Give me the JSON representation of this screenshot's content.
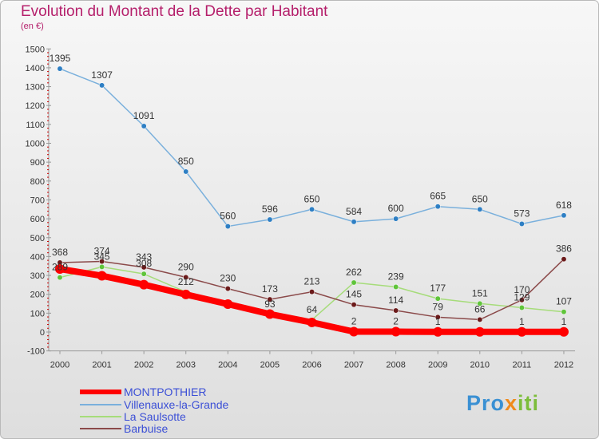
{
  "title": "Evolution du Montant de la Dette par Habitant",
  "subtitle": "(en €)",
  "logo": {
    "part1": "Pro",
    "part2": "x",
    "part3": "iti"
  },
  "colors": {
    "title": "#b51f6b",
    "legend_text": "#3b4fd6",
    "axis": "#999999",
    "tick_marks": "#cc0000"
  },
  "chart_data": {
    "type": "line",
    "title": "Evolution du Montant de la Dette par Habitant",
    "ylabel": "(en €)",
    "x": [
      "2000",
      "2001",
      "2002",
      "2003",
      "2004",
      "2005",
      "2006",
      "2007",
      "2008",
      "2009",
      "2010",
      "2011",
      "2012"
    ],
    "ylim": [
      -100,
      1500
    ],
    "yticks": [
      -100,
      0,
      100,
      200,
      300,
      400,
      500,
      600,
      700,
      800,
      900,
      1000,
      1100,
      1200,
      1300,
      1400,
      1500
    ],
    "grid": false,
    "legend_position": "bottom-left",
    "series": [
      {
        "name": "MONTPOTHIER",
        "color": "#ff0000",
        "marker": "#ff0000",
        "width": 8,
        "values": [
          334,
          298,
          251,
          199,
          148,
          95,
          51,
          2,
          2,
          1,
          1,
          1,
          1
        ],
        "labels": [
          "334",
          "298",
          "251",
          "199",
          "148",
          "95",
          "51",
          "2",
          "2",
          "1",
          "1",
          "1",
          "1"
        ],
        "show_labels": [
          false,
          false,
          false,
          false,
          false,
          false,
          false,
          true,
          true,
          true,
          false,
          true,
          true
        ]
      },
      {
        "name": "Villenauxe-la-Grande",
        "color": "#7ab0dc",
        "marker": "#2e7fc4",
        "width": 1.5,
        "values": [
          1395,
          1307,
          1091,
          850,
          560,
          596,
          650,
          584,
          600,
          665,
          650,
          573,
          618
        ],
        "labels": [
          "1395",
          "1307",
          "1091",
          "850",
          "560",
          "596",
          "650",
          "584",
          "600",
          "665",
          "650",
          "573",
          "618"
        ],
        "show_labels": [
          true,
          true,
          true,
          true,
          true,
          true,
          true,
          true,
          true,
          true,
          true,
          true,
          true
        ]
      },
      {
        "name": "La Saulsotte",
        "color": "#a6dc7a",
        "marker": "#5fc43a",
        "width": 1.5,
        "values": [
          289,
          345,
          308,
          212,
          153,
          93,
          64,
          262,
          239,
          177,
          151,
          129,
          107
        ],
        "labels": [
          "289",
          "345",
          "308",
          "212",
          "153",
          "93",
          "64",
          "262",
          "239",
          "177",
          "151",
          "129",
          "107"
        ],
        "show_labels": [
          true,
          true,
          true,
          true,
          false,
          true,
          true,
          true,
          true,
          true,
          true,
          true,
          true
        ]
      },
      {
        "name": "Barbuise",
        "color": "#8b4a4a",
        "marker": "#6b1a1a",
        "width": 1.5,
        "values": [
          368,
          374,
          343,
          290,
          230,
          173,
          213,
          145,
          114,
          79,
          66,
          170,
          386
        ],
        "labels": [
          "368",
          "374",
          "343",
          "290",
          "230",
          "173",
          "213",
          "145",
          "114",
          "79",
          "66",
          "170",
          "386"
        ],
        "show_labels": [
          true,
          true,
          true,
          true,
          true,
          true,
          true,
          true,
          true,
          true,
          true,
          true,
          true
        ]
      }
    ]
  }
}
